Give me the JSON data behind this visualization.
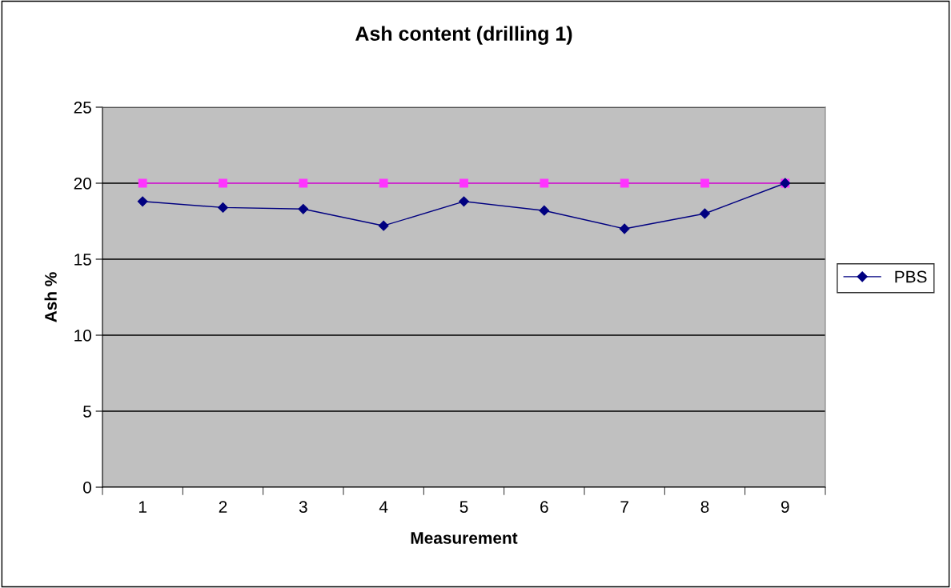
{
  "chart_data": {
    "type": "line",
    "title": "Ash content (drilling 1)",
    "xlabel": "Measurement",
    "ylabel": "Ash %",
    "categories": [
      "1",
      "2",
      "3",
      "4",
      "5",
      "6",
      "7",
      "8",
      "9"
    ],
    "series": [
      {
        "name": "PBS",
        "color": "#000080",
        "marker": "diamond",
        "values": [
          18.8,
          18.4,
          18.3,
          17.2,
          18.8,
          18.2,
          17.0,
          18.0,
          20.0
        ]
      },
      {
        "color": "#ff33ff",
        "marker": "square",
        "values": [
          20,
          20,
          20,
          20,
          20,
          20,
          20,
          20,
          20
        ]
      }
    ],
    "ylim": [
      0,
      25
    ],
    "yticks": [
      0,
      5,
      10,
      15,
      20,
      25
    ],
    "grid": "y",
    "legend": "right"
  }
}
